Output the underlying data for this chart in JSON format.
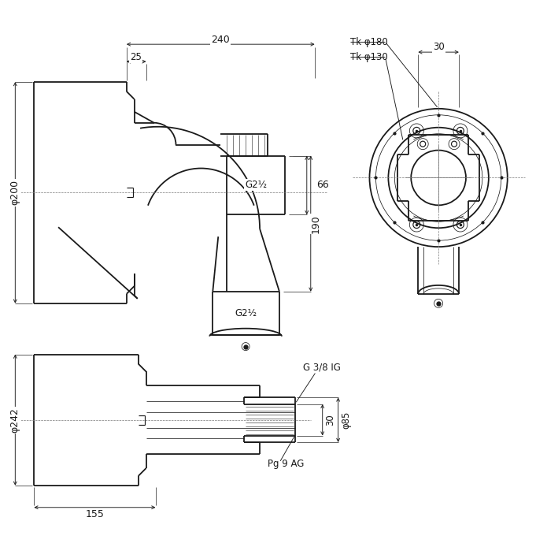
{
  "bg": "#ffffff",
  "lc": "#1a1a1a",
  "fig_w": 6.81,
  "fig_h": 6.8,
  "dpi": 100,
  "ann": {
    "d240": "240",
    "d25": "25",
    "d200": "φ200",
    "d66": "66",
    "d190": "190",
    "G212a": "G2½",
    "G212b": "G2½",
    "Tk180": "Tk φ180",
    "Tk130": "Tk φ130",
    "d30": "30",
    "d242": "φ242",
    "d155": "155",
    "d30b": "30",
    "d85": "φ85",
    "G38": "G 3/8 IG",
    "Pg9": "Pg 9 AG"
  }
}
